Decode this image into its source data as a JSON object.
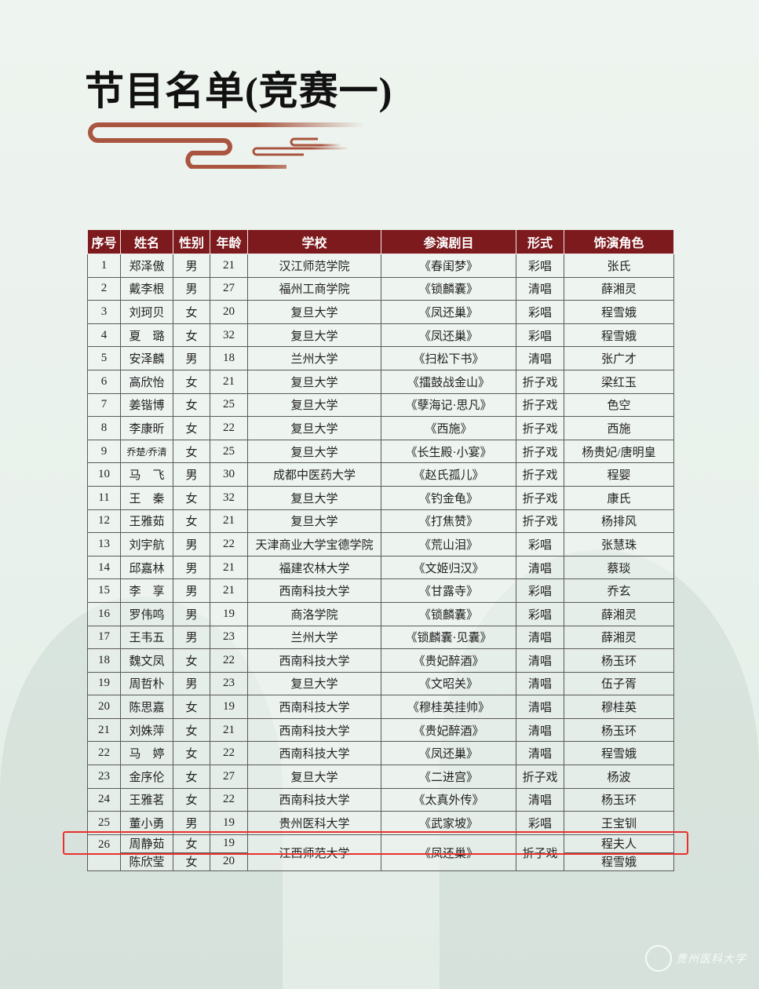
{
  "title": "节目名单(竞赛一)",
  "accent_color": "#7d1a1d",
  "highlight_color": "#e8312e",
  "logo_text": "贵州医科大学",
  "table": {
    "headers": [
      "序号",
      "姓名",
      "性别",
      "年龄",
      "学校",
      "参演剧目",
      "形式",
      "饰演角色"
    ],
    "rows": [
      [
        "1",
        "郑泽傲",
        "男",
        "21",
        "汉江师范学院",
        "《春闺梦》",
        "彩唱",
        "张氏"
      ],
      [
        "2",
        "戴李根",
        "男",
        "27",
        "福州工商学院",
        "《锁麟囊》",
        "清唱",
        "薛湘灵"
      ],
      [
        "3",
        "刘珂贝",
        "女",
        "20",
        "复旦大学",
        "《凤还巢》",
        "彩唱",
        "程雪娥"
      ],
      [
        "4",
        "夏　璐",
        "女",
        "32",
        "复旦大学",
        "《凤还巢》",
        "彩唱",
        "程雪娥"
      ],
      [
        "5",
        "安泽麟",
        "男",
        "18",
        "兰州大学",
        "《扫松下书》",
        "清唱",
        "张广才"
      ],
      [
        "6",
        "高欣怡",
        "女",
        "21",
        "复旦大学",
        "《擂鼓战金山》",
        "折子戏",
        "梁红玉"
      ],
      [
        "7",
        "姜锴博",
        "女",
        "25",
        "复旦大学",
        "《孽海记·思凡》",
        "折子戏",
        "色空"
      ],
      [
        "8",
        "李康昕",
        "女",
        "22",
        "复旦大学",
        "《西施》",
        "折子戏",
        "西施"
      ],
      [
        "9",
        "乔楚/乔清",
        "女",
        "25",
        "复旦大学",
        "《长生殿·小宴》",
        "折子戏",
        "杨贵妃/唐明皇"
      ],
      [
        "10",
        "马　飞",
        "男",
        "30",
        "成都中医药大学",
        "《赵氏孤儿》",
        "折子戏",
        "程婴"
      ],
      [
        "11",
        "王　秦",
        "女",
        "32",
        "复旦大学",
        "《钓金龟》",
        "折子戏",
        "康氏"
      ],
      [
        "12",
        "王雅茹",
        "女",
        "21",
        "复旦大学",
        "《打焦赞》",
        "折子戏",
        "杨排风"
      ],
      [
        "13",
        "刘宇航",
        "男",
        "22",
        "天津商业大学宝德学院",
        "《荒山泪》",
        "彩唱",
        "张慧珠"
      ],
      [
        "14",
        "邱嘉林",
        "男",
        "21",
        "福建农林大学",
        "《文姬归汉》",
        "清唱",
        "蔡琰"
      ],
      [
        "15",
        "李　享",
        "男",
        "21",
        "西南科技大学",
        "《甘露寺》",
        "彩唱",
        "乔玄"
      ],
      [
        "16",
        "罗伟鸣",
        "男",
        "19",
        "商洛学院",
        "《锁麟囊》",
        "彩唱",
        "薛湘灵"
      ],
      [
        "17",
        "王韦五",
        "男",
        "23",
        "兰州大学",
        "《锁麟囊·见囊》",
        "清唱",
        "薛湘灵"
      ],
      [
        "18",
        "魏文凤",
        "女",
        "22",
        "西南科技大学",
        "《贵妃醉酒》",
        "清唱",
        "杨玉环"
      ],
      [
        "19",
        "周哲朴",
        "男",
        "23",
        "复旦大学",
        "《文昭关》",
        "清唱",
        "伍子胥"
      ],
      [
        "20",
        "陈思嘉",
        "女",
        "19",
        "西南科技大学",
        "《穆桂英挂帅》",
        "清唱",
        "穆桂英"
      ],
      [
        "21",
        "刘姝萍",
        "女",
        "21",
        "西南科技大学",
        "《贵妃醉酒》",
        "清唱",
        "杨玉环"
      ],
      [
        "22",
        "马　婷",
        "女",
        "22",
        "西南科技大学",
        "《凤还巢》",
        "清唱",
        "程雪娥"
      ],
      [
        "23",
        "金序伦",
        "女",
        "27",
        "复旦大学",
        "《二进宫》",
        "折子戏",
        "杨波"
      ],
      [
        "24",
        "王雅茗",
        "女",
        "22",
        "西南科技大学",
        "《太真外传》",
        "清唱",
        "杨玉环"
      ],
      [
        "25",
        "董小勇",
        "男",
        "19",
        "贵州医科大学",
        "《武家坡》",
        "彩唱",
        "王宝钏"
      ]
    ],
    "group_row": {
      "no": "26",
      "school": "江西师范大学",
      "play": "《凤还巢》",
      "form": "折子戏",
      "performers": [
        {
          "name": "周静茹",
          "gender": "女",
          "age": "19",
          "role": "程夫人"
        },
        {
          "name": "陈欣莹",
          "gender": "女",
          "age": "20",
          "role": "程雪娥"
        }
      ]
    },
    "highlighted_row": "25"
  }
}
